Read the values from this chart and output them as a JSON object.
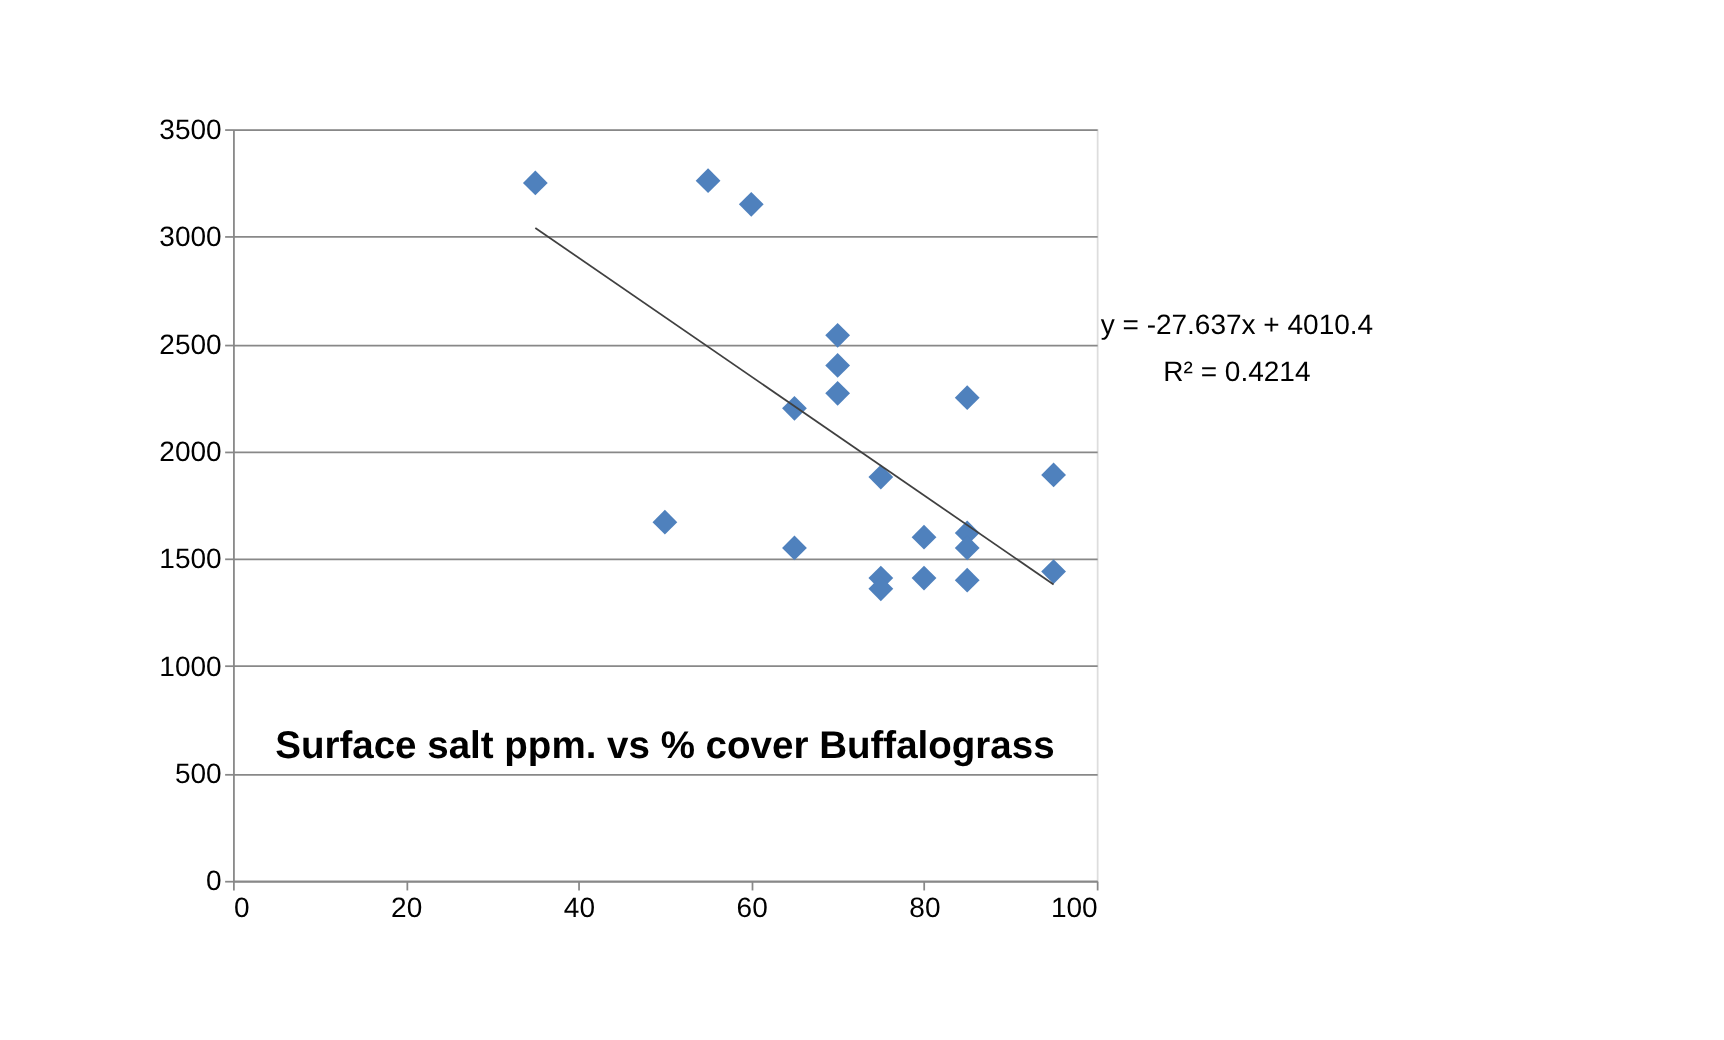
{
  "chart_data": {
    "type": "scatter",
    "title": "Surface salt ppm. vs % cover Buffalograss",
    "xlim": [
      0,
      100
    ],
    "xticks": [
      0,
      20,
      40,
      60,
      80,
      100
    ],
    "ylim": [
      0,
      3500
    ],
    "yticks": [
      0,
      500,
      1000,
      1500,
      2000,
      2500,
      3000,
      3500
    ],
    "grid": "y",
    "series": [
      {
        "type": "scatter",
        "marker": "diamond",
        "color": "#4f81bd",
        "x": [
          35,
          55,
          60,
          50,
          65,
          65,
          70,
          70,
          70,
          75,
          75,
          75,
          80,
          80,
          85,
          85,
          85,
          85,
          95,
          95
        ],
        "values": [
          3250,
          3260,
          3150,
          1670,
          2200,
          1550,
          2540,
          2400,
          2270,
          1880,
          1410,
          1360,
          1600,
          1410,
          2250,
          1620,
          1550,
          1400,
          1890,
          1440
        ]
      },
      {
        "type": "line",
        "color": "#404040",
        "x": [
          35,
          95
        ],
        "values": [
          3040,
          1380
        ]
      }
    ],
    "annotations": [
      "y = -27.637x + 4010.4",
      "R² = 0.4214"
    ]
  }
}
